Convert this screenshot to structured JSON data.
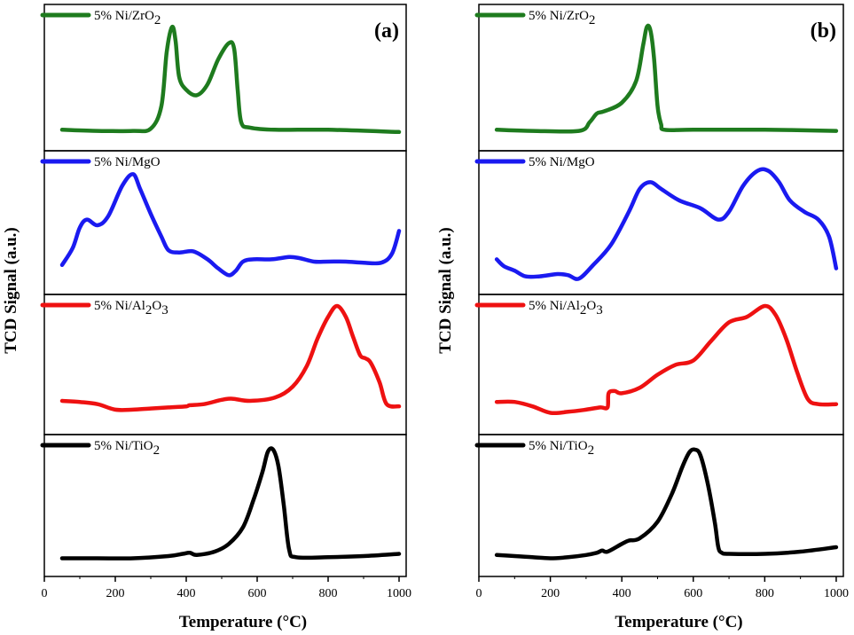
{
  "chart_data": [
    {
      "type": "line",
      "panel_label": "(a)",
      "xlabel": "Temperature (°C)",
      "ylabel": "TCD Signal (a.u.)",
      "xlim": [
        0,
        1020
      ],
      "xticks": [
        0,
        200,
        400,
        600,
        800,
        1000
      ],
      "ylim": [
        0,
        1
      ],
      "series": [
        {
          "name": "5% Ni/ZrO2",
          "label_base": "5% Ni/ZrO",
          "label_sub": "2",
          "color": "#1e7b1e",
          "x": [
            50,
            150,
            250,
            300,
            330,
            345,
            360,
            370,
            380,
            400,
            430,
            460,
            490,
            520,
            535,
            545,
            555,
            580,
            650,
            800,
            1000
          ],
          "y": [
            0.03,
            0.02,
            0.02,
            0.04,
            0.25,
            0.75,
            0.98,
            0.85,
            0.52,
            0.4,
            0.35,
            0.45,
            0.68,
            0.83,
            0.78,
            0.4,
            0.1,
            0.05,
            0.03,
            0.03,
            0.01
          ]
        },
        {
          "name": "5% Ni/MgO",
          "label_base": "5% Ni/MgO",
          "label_sub": "",
          "color": "#1a1af0",
          "x": [
            50,
            80,
            100,
            120,
            150,
            180,
            220,
            250,
            270,
            300,
            330,
            350,
            380,
            420,
            460,
            490,
            520,
            540,
            560,
            590,
            640,
            690,
            720,
            760,
            800,
            850,
            900,
            950,
            980,
            1000
          ],
          "y": [
            0.15,
            0.3,
            0.48,
            0.55,
            0.5,
            0.58,
            0.85,
            0.95,
            0.82,
            0.6,
            0.4,
            0.28,
            0.26,
            0.27,
            0.2,
            0.12,
            0.06,
            0.1,
            0.18,
            0.2,
            0.2,
            0.22,
            0.21,
            0.18,
            0.18,
            0.18,
            0.17,
            0.17,
            0.25,
            0.45
          ]
        },
        {
          "name": "5% Ni/Al2O3",
          "label_base": "5% Ni/Al",
          "label_sub": "2",
          "label_mid": "O",
          "label_sub2": "3",
          "color": "#ee1111",
          "x": [
            50,
            100,
            150,
            200,
            250,
            300,
            350,
            400,
            410,
            450,
            500,
            530,
            580,
            650,
            700,
            740,
            770,
            800,
            825,
            850,
            870,
            890,
            905,
            920,
            945,
            965,
            1000
          ],
          "y": [
            0.13,
            0.12,
            0.1,
            0.05,
            0.05,
            0.06,
            0.07,
            0.08,
            0.09,
            0.1,
            0.14,
            0.15,
            0.13,
            0.16,
            0.26,
            0.45,
            0.7,
            0.9,
            1.0,
            0.9,
            0.72,
            0.55,
            0.52,
            0.48,
            0.3,
            0.1,
            0.08
          ]
        },
        {
          "name": "5% Ni/TiO2",
          "label_base": "5% Ni/TiO",
          "label_sub": "2",
          "color": "#000000",
          "x": [
            50,
            150,
            250,
            350,
            390,
            410,
            430,
            480,
            520,
            560,
            590,
            615,
            630,
            645,
            660,
            675,
            690,
            710,
            800,
            900,
            1000
          ],
          "y": [
            0.02,
            0.02,
            0.02,
            0.04,
            0.06,
            0.07,
            0.05,
            0.08,
            0.15,
            0.3,
            0.55,
            0.8,
            0.98,
            1.0,
            0.85,
            0.5,
            0.1,
            0.03,
            0.03,
            0.04,
            0.06
          ]
        }
      ]
    },
    {
      "type": "line",
      "panel_label": "(b)",
      "xlabel": "Temperature (°C)",
      "ylabel": "TCD Signal (a.u.)",
      "xlim": [
        0,
        1020
      ],
      "xticks": [
        0,
        200,
        400,
        600,
        800,
        1000
      ],
      "ylim": [
        0,
        1
      ],
      "series": [
        {
          "name": "5% Ni/ZrO2",
          "label_base": "5% Ni/ZrO",
          "label_sub": "2",
          "color": "#1e7b1e",
          "x": [
            50,
            150,
            280,
            310,
            330,
            350,
            400,
            440,
            460,
            470,
            480,
            490,
            500,
            510,
            520,
            600,
            800,
            1000
          ],
          "y": [
            0.03,
            0.02,
            0.02,
            0.1,
            0.18,
            0.2,
            0.28,
            0.48,
            0.82,
            0.98,
            0.95,
            0.7,
            0.25,
            0.08,
            0.03,
            0.03,
            0.03,
            0.02
          ]
        },
        {
          "name": "5% Ni/MgO",
          "label_base": "5% Ni/MgO",
          "label_sub": "",
          "color": "#1a1af0",
          "x": [
            50,
            70,
            100,
            130,
            170,
            220,
            250,
            280,
            320,
            370,
            420,
            450,
            480,
            510,
            560,
            620,
            670,
            700,
            740,
            780,
            810,
            840,
            870,
            910,
            950,
            980,
            1000
          ],
          "y": [
            0.2,
            0.14,
            0.1,
            0.05,
            0.05,
            0.07,
            0.06,
            0.03,
            0.15,
            0.33,
            0.62,
            0.82,
            0.88,
            0.82,
            0.72,
            0.65,
            0.55,
            0.62,
            0.85,
            0.98,
            0.98,
            0.88,
            0.72,
            0.62,
            0.55,
            0.4,
            0.12
          ]
        },
        {
          "name": "5% Ni/Al2O3",
          "label_base": "5% Ni/Al",
          "label_sub": "2",
          "label_mid": "O",
          "label_sub2": "3",
          "color": "#ee1111",
          "x": [
            50,
            100,
            150,
            200,
            250,
            300,
            340,
            360,
            363,
            380,
            400,
            450,
            500,
            550,
            600,
            650,
            700,
            750,
            800,
            830,
            860,
            890,
            920,
            950,
            1000
          ],
          "y": [
            0.12,
            0.12,
            0.08,
            0.02,
            0.03,
            0.05,
            0.07,
            0.07,
            0.2,
            0.22,
            0.2,
            0.25,
            0.37,
            0.46,
            0.5,
            0.68,
            0.85,
            0.9,
            1.0,
            0.92,
            0.7,
            0.4,
            0.15,
            0.1,
            0.1
          ]
        },
        {
          "name": "5% Ni/TiO2",
          "label_base": "5% Ni/TiO",
          "label_sub": "2",
          "color": "#000000",
          "x": [
            50,
            100,
            150,
            200,
            250,
            300,
            330,
            345,
            360,
            400,
            420,
            450,
            500,
            540,
            570,
            590,
            605,
            620,
            640,
            660,
            670,
            680,
            700,
            800,
            900,
            1000
          ],
          "y": [
            0.05,
            0.04,
            0.03,
            0.02,
            0.03,
            0.05,
            0.07,
            0.09,
            0.08,
            0.15,
            0.18,
            0.2,
            0.35,
            0.6,
            0.85,
            0.98,
            1.0,
            0.95,
            0.7,
            0.35,
            0.12,
            0.07,
            0.06,
            0.06,
            0.08,
            0.12
          ]
        }
      ]
    }
  ]
}
